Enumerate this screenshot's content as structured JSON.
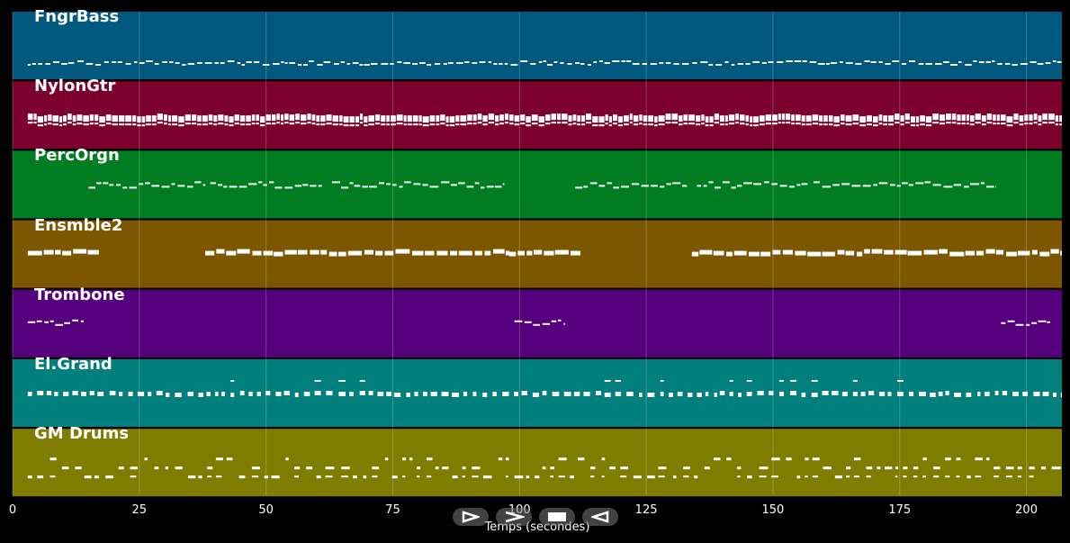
{
  "chart_data": {
    "type": "piano-roll",
    "xlabel": "Temps (secondes)",
    "xlim": [
      0,
      207
    ],
    "x_ticks": [
      "0",
      "25",
      "50",
      "75",
      "100",
      "125",
      "150",
      "175",
      "200"
    ],
    "x_tick_values": [
      0,
      25,
      50,
      75,
      100,
      125,
      150,
      175,
      200
    ],
    "grid": true,
    "tracks": [
      {
        "name": "FngrBass",
        "color": "#00587f",
        "segments": [
          [
            3,
            207
          ]
        ],
        "style": "sparse-low"
      },
      {
        "name": "NylonGtr",
        "color": "#7b002c",
        "segments": [
          [
            3,
            207
          ]
        ],
        "style": "dense-chords"
      },
      {
        "name": "PercOrgn",
        "color": "#007d20",
        "segments": [
          [
            15,
            38
          ],
          [
            39,
            61
          ],
          [
            63,
            97
          ],
          [
            111,
            133
          ],
          [
            135,
            157
          ],
          [
            158,
            194
          ]
        ],
        "style": "melody"
      },
      {
        "name": "Ensmble2",
        "color": "#7d5600",
        "segments": [
          [
            3,
            17
          ],
          [
            38,
            98
          ],
          [
            98,
            112
          ],
          [
            134,
            194
          ],
          [
            194,
            207
          ]
        ],
        "style": "sustained"
      },
      {
        "name": "Trombone",
        "color": "#55007d",
        "segments": [
          [
            3,
            14
          ],
          [
            99,
            109
          ],
          [
            195,
            205
          ]
        ],
        "style": "phrase"
      },
      {
        "name": "El.Grand",
        "color": "#007f7d",
        "segments": [
          [
            3,
            207
          ]
        ],
        "style": "comping"
      },
      {
        "name": "GM Drums",
        "color": "#7f7d00",
        "segments": [
          [
            3,
            207
          ]
        ],
        "style": "drums"
      }
    ]
  },
  "controls": {
    "play_label": "play",
    "forward_label": "fast-forward",
    "stop_label": "stop",
    "back_label": "rewind"
  }
}
